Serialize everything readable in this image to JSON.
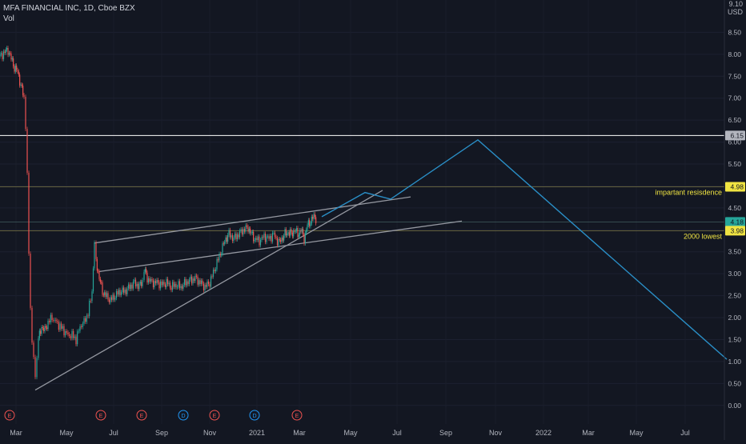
{
  "header": {
    "symbol_line": "MFA FINANCIAL INC, 1D, Cboe BZX",
    "volume_label": "Vol"
  },
  "axis": {
    "top_tick": "9.10",
    "currency": "USD"
  },
  "chart_data": {
    "type": "candlestick",
    "ylim": [
      -0.15,
      9.2
    ],
    "y_ticks": [
      "0.00",
      "0.50",
      "1.00",
      "1.50",
      "2.00",
      "2.50",
      "3.00",
      "3.50",
      "4.00",
      "4.50",
      "5.00",
      "5.50",
      "6.00",
      "6.50",
      "7.00",
      "7.50",
      "8.00",
      "8.50"
    ],
    "x_ticks": [
      "Mar",
      "May",
      "Jul",
      "Sep",
      "Nov",
      "2021",
      "Mar",
      "May",
      "Jul",
      "Sep",
      "Nov",
      "2022",
      "Mar",
      "May",
      "Jul"
    ],
    "price_labels": [
      {
        "value": 6.15,
        "text": "6.15",
        "color": "#b2b5be"
      },
      {
        "value": 4.98,
        "text": "4.98",
        "color": "#f0e442"
      },
      {
        "value": 4.18,
        "text": "4.18",
        "color": "#26a69a"
      },
      {
        "value": 3.98,
        "text": "3.98",
        "color": "#f0e442"
      }
    ],
    "annotations": [
      {
        "text": "impartant resisdence",
        "value": 4.98
      },
      {
        "text": "2000 lowest",
        "value": 3.98
      }
    ],
    "events": [
      "E",
      "E",
      "E",
      "D",
      "E",
      "D",
      "E"
    ],
    "ohlc_path": [
      [
        0,
        7.95
      ],
      [
        6,
        8.05
      ],
      [
        10,
        8.1
      ],
      [
        14,
        7.9
      ],
      [
        18,
        7.7
      ],
      [
        22,
        7.6
      ],
      [
        26,
        7.3
      ],
      [
        30,
        7.0
      ],
      [
        32,
        6.4
      ],
      [
        34,
        5.2
      ],
      [
        36,
        3.5
      ],
      [
        38,
        2.2
      ],
      [
        40,
        1.5
      ],
      [
        42,
        1.0
      ],
      [
        44,
        0.7
      ],
      [
        46,
        1.1
      ],
      [
        48,
        1.5
      ],
      [
        52,
        1.8
      ],
      [
        56,
        1.7
      ],
      [
        60,
        1.9
      ],
      [
        65,
        2.0
      ],
      [
        70,
        1.9
      ],
      [
        75,
        1.8
      ],
      [
        80,
        1.7
      ],
      [
        85,
        1.6
      ],
      [
        90,
        1.6
      ],
      [
        95,
        1.5
      ],
      [
        100,
        1.8
      ],
      [
        105,
        1.9
      ],
      [
        110,
        2.1
      ],
      [
        115,
        2.6
      ],
      [
        118,
        3.7
      ],
      [
        120,
        3.3
      ],
      [
        124,
        2.9
      ],
      [
        128,
        2.6
      ],
      [
        132,
        2.5
      ],
      [
        138,
        2.4
      ],
      [
        144,
        2.5
      ],
      [
        150,
        2.6
      ],
      [
        156,
        2.6
      ],
      [
        162,
        2.7
      ],
      [
        168,
        2.8
      ],
      [
        174,
        2.7
      ],
      [
        178,
        2.85
      ],
      [
        180,
        3.1
      ],
      [
        184,
        2.9
      ],
      [
        190,
        2.8
      ],
      [
        196,
        2.8
      ],
      [
        202,
        2.75
      ],
      [
        208,
        2.8
      ],
      [
        214,
        2.7
      ],
      [
        220,
        2.75
      ],
      [
        226,
        2.7
      ],
      [
        232,
        2.8
      ],
      [
        238,
        2.85
      ],
      [
        244,
        2.9
      ],
      [
        250,
        2.8
      ],
      [
        256,
        2.7
      ],
      [
        262,
        2.8
      ],
      [
        268,
        3.1
      ],
      [
        274,
        3.4
      ],
      [
        278,
        3.6
      ],
      [
        282,
        3.8
      ],
      [
        286,
        3.9
      ],
      [
        292,
        3.8
      ],
      [
        298,
        3.9
      ],
      [
        304,
        4.0
      ],
      [
        310,
        4.05
      ],
      [
        314,
        3.9
      ],
      [
        318,
        3.8
      ],
      [
        324,
        3.75
      ],
      [
        330,
        3.85
      ],
      [
        336,
        3.8
      ],
      [
        342,
        3.9
      ],
      [
        348,
        3.7
      ],
      [
        352,
        3.8
      ],
      [
        356,
        3.9
      ],
      [
        360,
        3.95
      ],
      [
        364,
        3.9
      ],
      [
        368,
        4.0
      ],
      [
        372,
        3.9
      ],
      [
        376,
        4.0
      ],
      [
        380,
        3.8
      ],
      [
        384,
        4.1
      ],
      [
        388,
        4.2
      ],
      [
        392,
        4.3
      ],
      [
        396,
        4.25
      ]
    ],
    "trendlines": [
      {
        "x1": 44,
        "y1": 0.35,
        "x2": 478,
        "y2": 4.9,
        "color": "#9598a1"
      },
      {
        "x1": 118,
        "y1": 3.7,
        "x2": 513,
        "y2": 4.75,
        "color": "#9598a1"
      },
      {
        "x1": 124,
        "y1": 3.05,
        "x2": 577,
        "y2": 4.2,
        "color": "#9598a1"
      }
    ],
    "projection": {
      "color": "#2a8fc7",
      "points": [
        [
          402,
          4.3
        ],
        [
          456,
          4.85
        ],
        [
          488,
          4.7
        ],
        [
          597,
          6.05
        ],
        [
          908,
          1.05
        ]
      ]
    },
    "hlines": [
      {
        "value": 6.15,
        "color": "#ffffff",
        "width": 1
      },
      {
        "value": 4.98,
        "color": "#8f8a48",
        "width": 0.6
      },
      {
        "value": 4.18,
        "color": "#4a6a6a",
        "width": 0.6
      },
      {
        "value": 3.98,
        "color": "#8f8a48",
        "width": 0.6
      }
    ]
  }
}
